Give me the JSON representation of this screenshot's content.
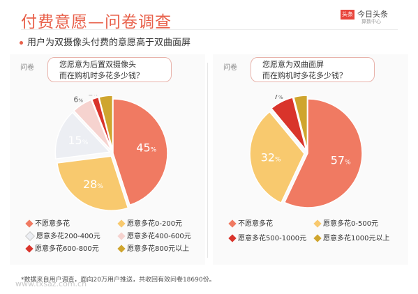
{
  "header": {
    "title": "付费意愿—问卷调查",
    "logo_badge": "头条",
    "logo_name": "今日头条",
    "logo_sub": "算数中心"
  },
  "subtitle": "用户为双摄像头付费的意愿高于双曲面屏",
  "question_label": "问卷",
  "footnote": "*数据来自用户调查，面向20万用户推送，共收回有效问卷18690份。",
  "watermark": "www.txsaz.com.cn",
  "chart_data": [
    {
      "type": "pie",
      "question": [
        "您愿意为后置双摄像头",
        "而在购机时多花多少钱？"
      ],
      "slices": [
        {
          "label": "不愿意多花",
          "value": 45,
          "color": "#f07a62"
        },
        {
          "label": "愿意多花0-200元",
          "value": 28,
          "color": "#f8c96e"
        },
        {
          "label": "愿意多花200-400元",
          "value": 15,
          "color": "#eceef3"
        },
        {
          "label": "愿意多花400-600元",
          "value": 6,
          "color": "#f6d3cf"
        },
        {
          "label": "愿意多花600-800元",
          "value": 2,
          "color": "#d9342b"
        },
        {
          "label": "愿意多花800元以上",
          "value": 4,
          "color": "#cfa52e"
        }
      ],
      "unit": "%"
    },
    {
      "type": "pie",
      "question": [
        "您愿意为双曲面屏",
        "而在购机时多花多少钱？"
      ],
      "slices": [
        {
          "label": "不愿意多花",
          "value": 57,
          "color": "#f07a62"
        },
        {
          "label": "愿意多花0-500元",
          "value": 32,
          "color": "#f8c96e"
        },
        {
          "label": "愿意多花500-1000元",
          "value": 7,
          "color": "#d9342b"
        },
        {
          "label": "愿意多花1000元以上",
          "value": 4,
          "color": "#cfa52e"
        }
      ],
      "unit": "%"
    }
  ]
}
